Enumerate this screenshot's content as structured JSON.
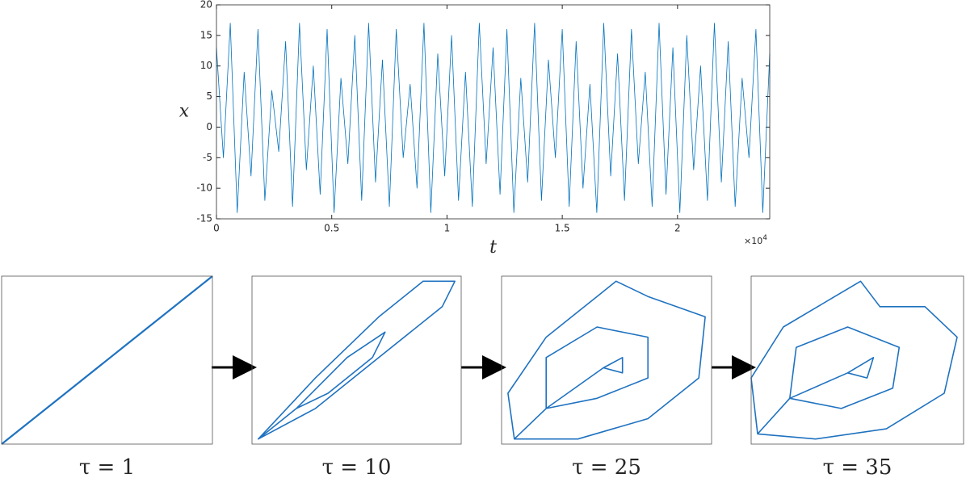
{
  "chart_data": [
    {
      "type": "line",
      "x_label": "t",
      "y_label": "x",
      "x_multiplier": "×10",
      "x_multiplier_exponent": "4",
      "color": "#0072bd",
      "xlim": [
        0,
        2.4
      ],
      "ylim": [
        -15,
        20
      ],
      "xticks": [
        0,
        0.5,
        1,
        1.5,
        2
      ],
      "yticks": [
        -15,
        -10,
        -5,
        0,
        5,
        10,
        15,
        20
      ],
      "x": [
        0,
        0.03,
        0.06,
        0.09,
        0.12,
        0.15,
        0.18,
        0.21,
        0.24,
        0.27,
        0.3,
        0.33,
        0.36,
        0.39,
        0.42,
        0.45,
        0.48,
        0.51,
        0.54,
        0.57,
        0.6,
        0.63,
        0.66,
        0.69,
        0.72,
        0.75,
        0.78,
        0.81,
        0.84,
        0.87,
        0.9,
        0.93,
        0.96,
        0.99,
        1.02,
        1.05,
        1.08,
        1.11,
        1.14,
        1.17,
        1.2,
        1.23,
        1.26,
        1.29,
        1.32,
        1.35,
        1.38,
        1.41,
        1.44,
        1.47,
        1.5,
        1.53,
        1.56,
        1.59,
        1.62,
        1.65,
        1.68,
        1.71,
        1.74,
        1.77,
        1.8,
        1.83,
        1.86,
        1.89,
        1.92,
        1.95,
        1.98,
        2.01,
        2.04,
        2.07,
        2.1,
        2.13,
        2.16,
        2.19,
        2.22,
        2.25,
        2.28,
        2.31,
        2.34,
        2.37,
        2.4
      ],
      "values": [
        13,
        -5,
        17,
        -14,
        9,
        -8,
        16,
        -12,
        6,
        -4,
        14,
        -13,
        17,
        -7,
        10,
        -11,
        16,
        -14,
        8,
        -6,
        15,
        -12,
        17,
        -9,
        11,
        -13,
        16,
        -5,
        7,
        -10,
        17,
        -14,
        12,
        -8,
        15,
        -12,
        9,
        -13,
        17,
        -6,
        13,
        -11,
        16,
        -14,
        8,
        -9,
        17,
        -12,
        11,
        -5,
        16,
        -13,
        14,
        -10,
        7,
        -14,
        17,
        -8,
        12,
        -12,
        16,
        -6,
        9,
        -13,
        17,
        -11,
        13,
        -14,
        15,
        -7,
        10,
        -12,
        17,
        -9,
        14,
        -13,
        8,
        -5,
        16,
        -14,
        12
      ]
    },
    {
      "type": "line",
      "title": "τ = 1",
      "color": "#1f72c0",
      "xlim": [
        -15,
        18
      ],
      "ylim": [
        -15,
        18
      ],
      "x": [
        -15,
        -5,
        5,
        18
      ],
      "values": [
        -15,
        -5,
        5,
        18
      ]
    },
    {
      "type": "line",
      "title": "τ = 10",
      "color": "#1f72c0",
      "xlim": [
        -15,
        18
      ],
      "ylim": [
        -15,
        18
      ],
      "x": [
        -14,
        -5,
        5,
        12,
        17,
        15,
        5,
        -5,
        -14,
        -8,
        0,
        6,
        4,
        -3,
        -8
      ],
      "values": [
        -14,
        -2,
        10,
        17,
        17,
        12,
        2,
        -8,
        -14,
        -8,
        2,
        7,
        2,
        -5,
        -8
      ]
    },
    {
      "type": "line",
      "title": "τ = 25",
      "color": "#1f72c0",
      "xlim": [
        -15,
        18
      ],
      "ylim": [
        -15,
        18
      ],
      "x": [
        -13,
        -14,
        -8,
        0,
        3,
        8,
        17,
        16,
        8,
        -3,
        -13,
        -8,
        -8,
        0,
        8,
        8,
        0,
        -8,
        1,
        4,
        4,
        1
      ],
      "values": [
        -14,
        -5,
        6,
        14,
        17,
        14,
        10,
        -2,
        -10,
        -14,
        -14,
        -8,
        2,
        8,
        6,
        -2,
        -6,
        -8,
        0,
        2,
        -1,
        0
      ]
    },
    {
      "type": "line",
      "title": "τ = 35",
      "color": "#1f72c0",
      "xlim": [
        -15,
        18
      ],
      "ylim": [
        -15,
        18
      ],
      "x": [
        -14,
        -15,
        -10,
        -2,
        2,
        5,
        12,
        17,
        15,
        6,
        -5,
        -14,
        -9,
        -8,
        0,
        8,
        7,
        -1,
        -9,
        0,
        4,
        3,
        0
      ],
      "values": [
        -13,
        -2,
        8,
        14,
        17,
        12,
        12,
        6,
        -5,
        -12,
        -14,
        -13,
        -6,
        4,
        8,
        4,
        -4,
        -8,
        -6,
        -1,
        2,
        -2,
        -1
      ]
    }
  ]
}
